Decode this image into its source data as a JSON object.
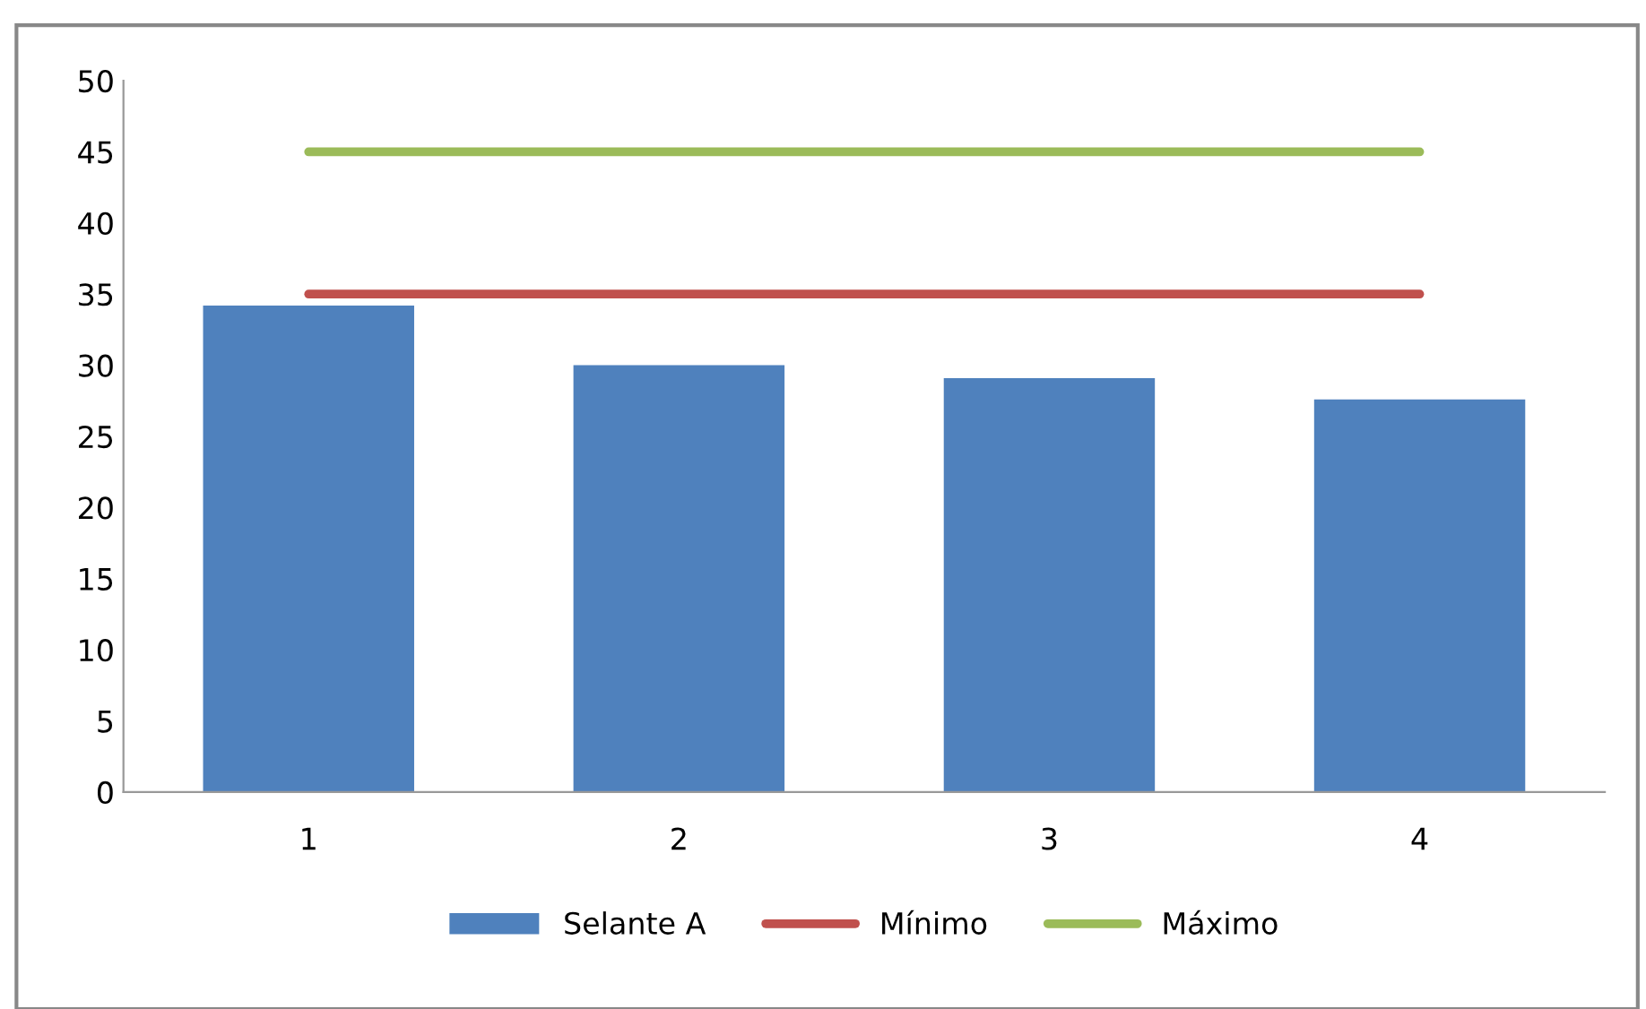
{
  "chart_data": {
    "type": "bar",
    "categories": [
      "1",
      "2",
      "3",
      "4"
    ],
    "series": [
      {
        "name": "Selante A",
        "color": "#4f81bd",
        "values": [
          34.2,
          30,
          29.1,
          27.6
        ]
      },
      {
        "name": "Mínimo",
        "type": "line",
        "color": "#c0504d",
        "values": [
          35,
          35,
          35,
          35
        ]
      },
      {
        "name": "Máximo",
        "type": "line",
        "color": "#9bbb59",
        "values": [
          45,
          45,
          45,
          45
        ]
      }
    ],
    "ylim": [
      0,
      50
    ],
    "yticks": [
      0,
      5,
      10,
      15,
      20,
      25,
      30,
      35,
      40,
      45,
      50
    ],
    "grid": false,
    "legend": "bottom",
    "marker": "none"
  }
}
